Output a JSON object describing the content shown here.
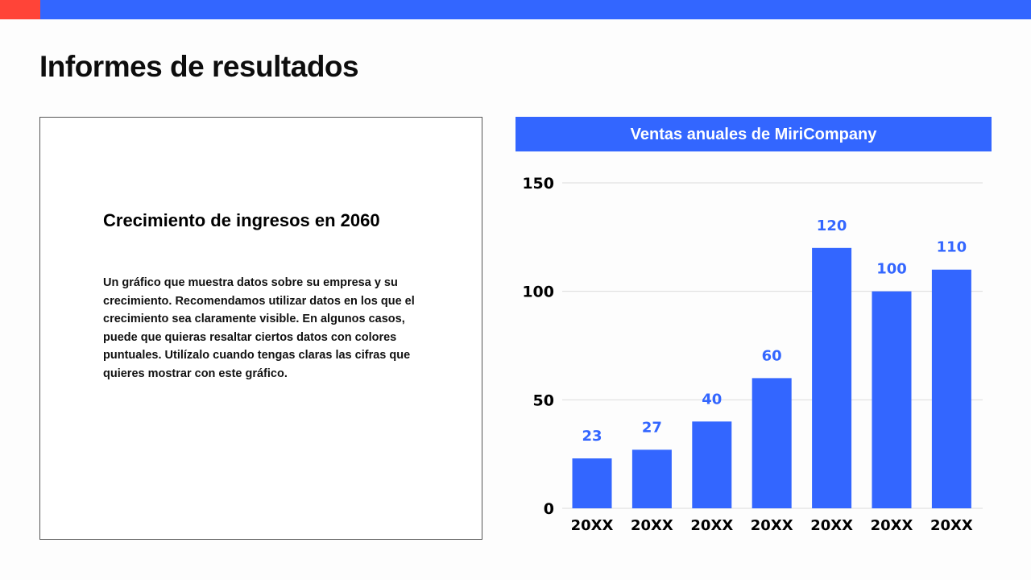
{
  "header": {
    "accent_color": "#ff4438",
    "bar_color": "#3366ff"
  },
  "page_title": "Informes de resultados",
  "card": {
    "heading": "Crecimiento de ingresos en 2060",
    "body": "Un gráfico que muestra datos sobre su empresa y su crecimiento. Recomendamos utilizar datos en los que el crecimiento sea claramente visible. En algunos casos, puede que quieras resaltar ciertos datos con colores puntuales. Utilízalo cuando tengas claras las cifras que quieres mostrar con este gráfico."
  },
  "chart_data": {
    "type": "bar",
    "title": "Ventas anuales de MiriCompany",
    "categories": [
      "20XX",
      "20XX",
      "20XX",
      "20XX",
      "20XX",
      "20XX",
      "20XX"
    ],
    "values": [
      23,
      27,
      40,
      60,
      120,
      100,
      110
    ],
    "yticks": [
      "0",
      "50",
      "100",
      "150"
    ],
    "ylim": [
      0,
      150
    ],
    "grid": true,
    "xlabel": "",
    "ylabel": "",
    "bar_color": "#3366ff"
  }
}
